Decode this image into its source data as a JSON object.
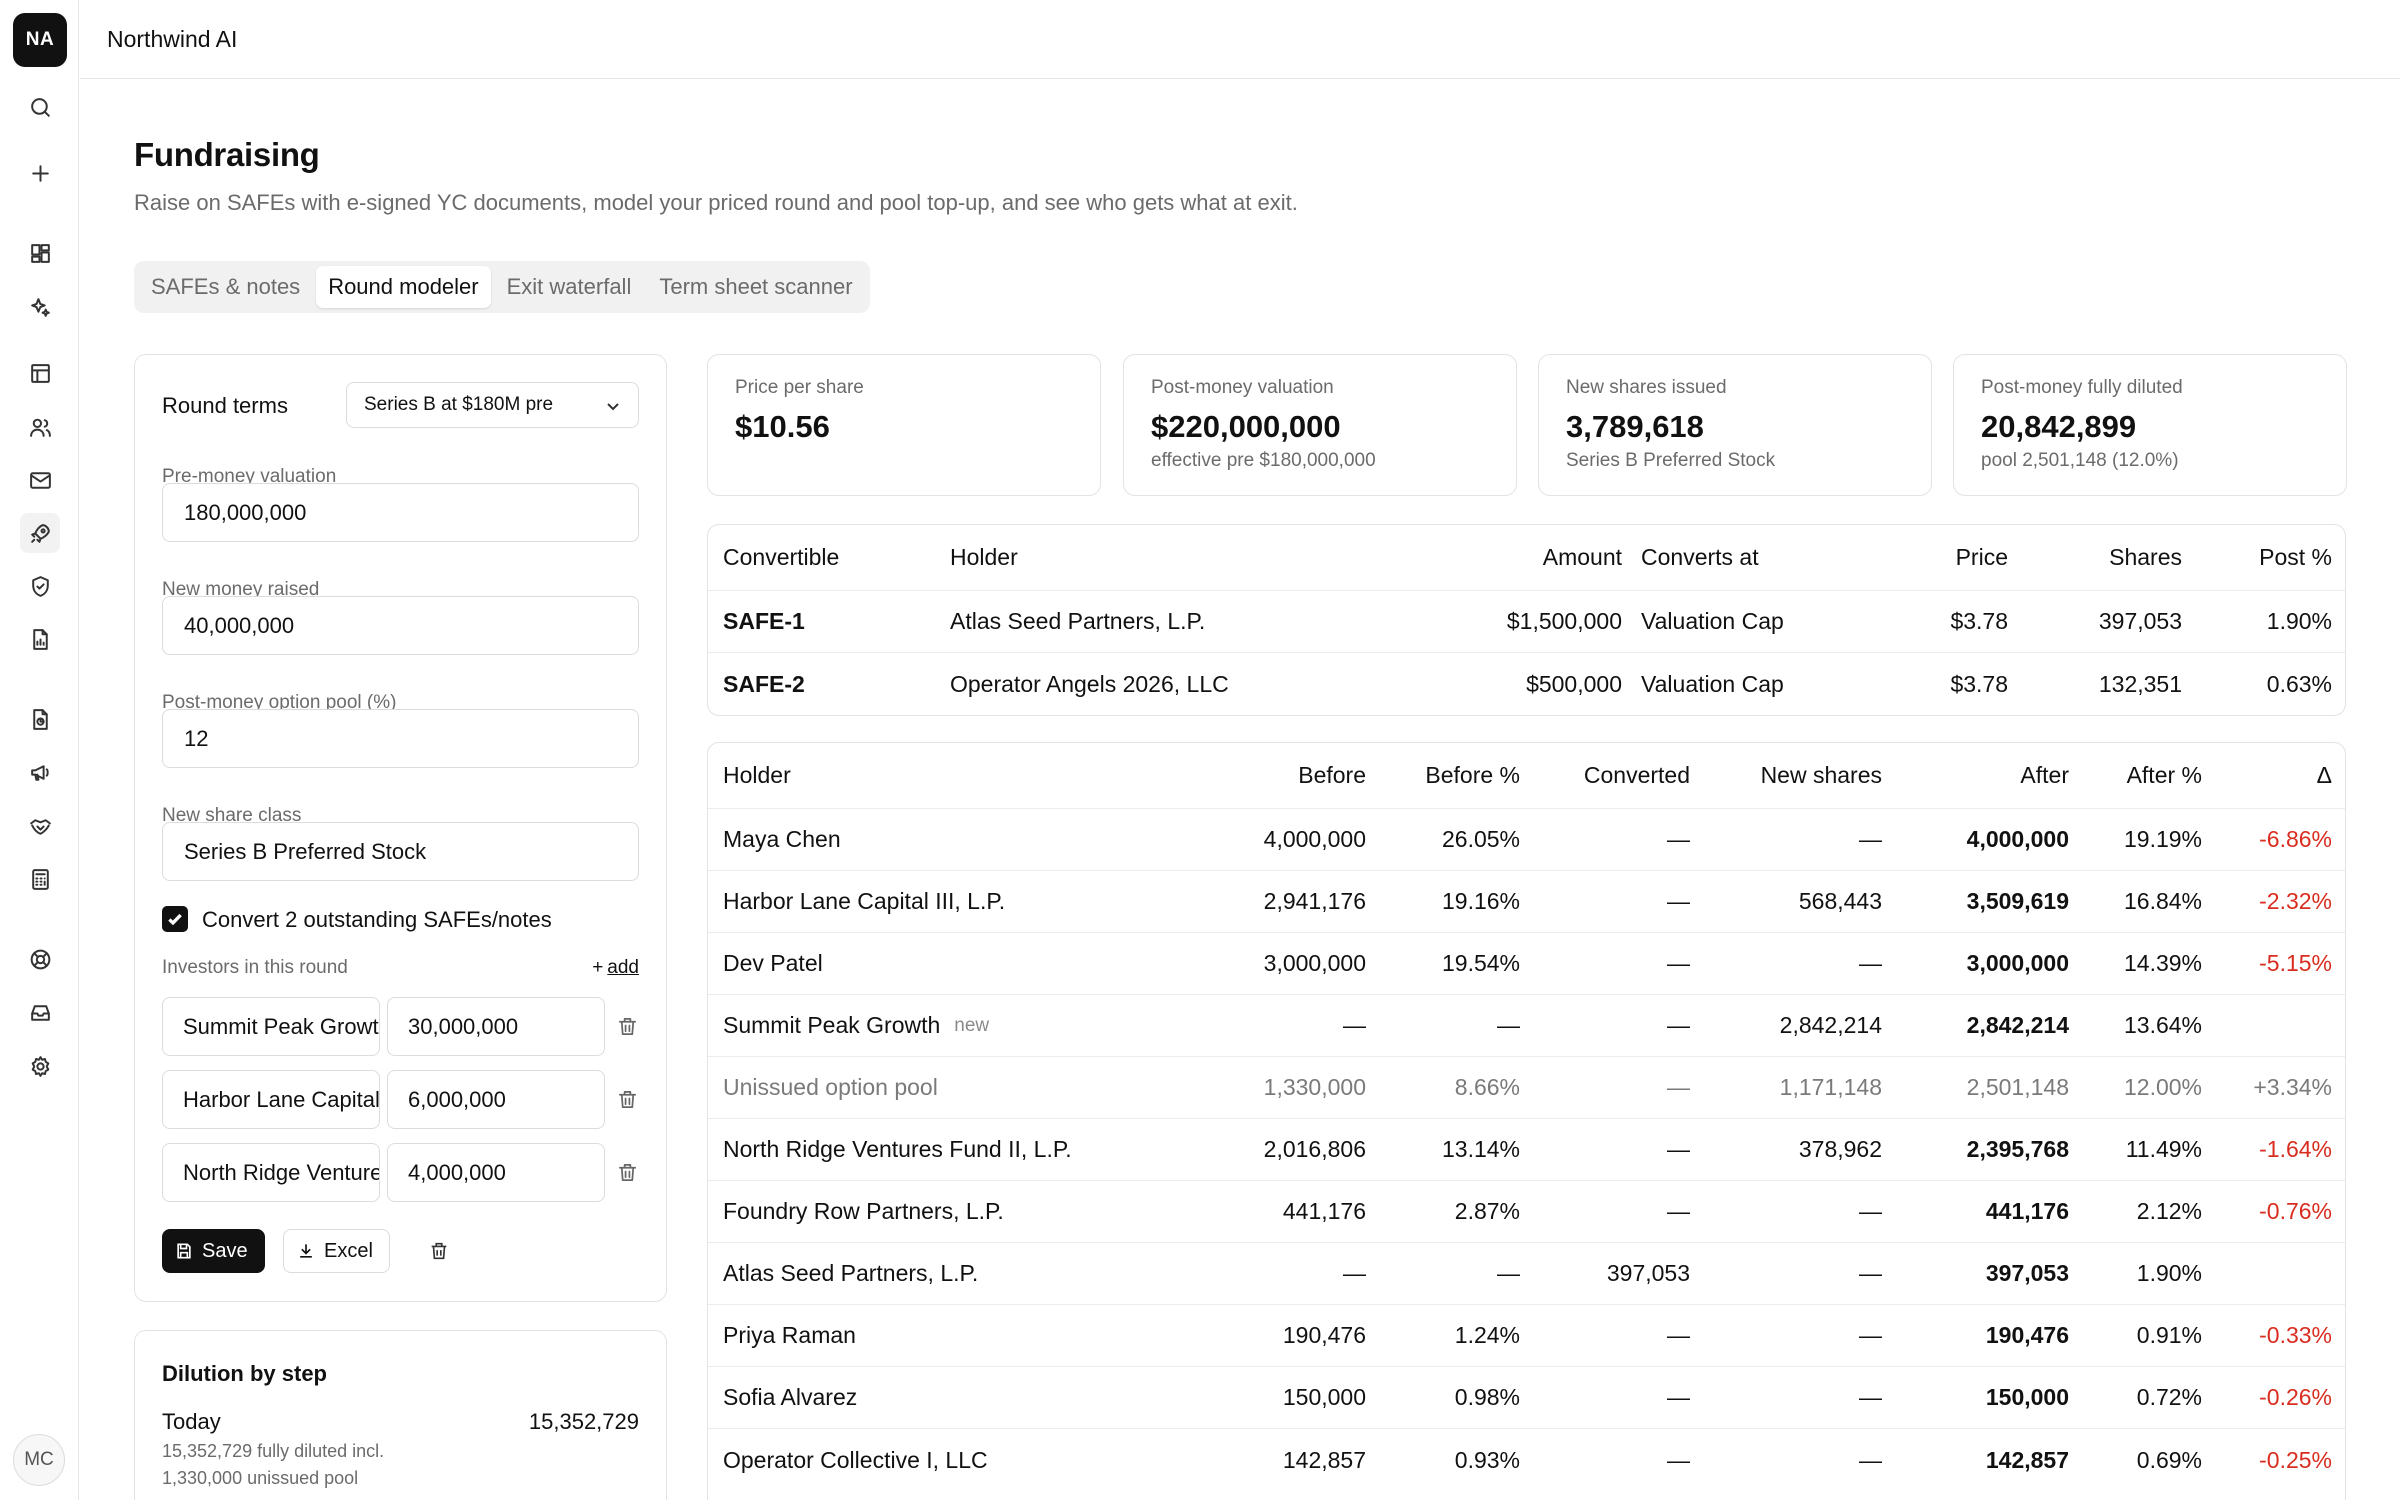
{
  "rail": {
    "logo": "NA",
    "avatar": "MC",
    "icons": [
      "search-icon",
      "plus-icon",
      "dashboard-icon",
      "sparkle-icon",
      "table-icon",
      "users-icon",
      "mail-icon",
      "rocket-icon",
      "shield-icon",
      "report-icon",
      "document-chart-icon",
      "megaphone-icon",
      "handshake-icon",
      "calculator-icon",
      "lifebuoy-icon",
      "inbox-icon",
      "gear-icon"
    ]
  },
  "app": {
    "title": "Northwind AI"
  },
  "page": {
    "title": "Fundraising",
    "subtitle": "Raise on SAFEs with e-signed YC documents, model your priced round and pool top-up, and see who gets what at exit."
  },
  "tabs": [
    {
      "label": "SAFEs & notes",
      "active": false
    },
    {
      "label": "Round modeler",
      "active": true
    },
    {
      "label": "Exit waterfall",
      "active": false
    },
    {
      "label": "Term sheet scanner",
      "active": false
    }
  ],
  "round_terms": {
    "label": "Round terms",
    "preset": "Series B at $180M pre",
    "fields": [
      {
        "label": "Pre-money valuation",
        "value": "180,000,000"
      },
      {
        "label": "New money raised",
        "value": "40,000,000"
      },
      {
        "label": "Post-money option pool (%)",
        "value": "12"
      },
      {
        "label": "New share class",
        "value": "Series B Preferred Stock"
      }
    ],
    "convert_label": "Convert 2 outstanding SAFEs/notes",
    "convert_checked": true,
    "investors_label": "Investors in this round",
    "add_label": "add",
    "investors": [
      {
        "name": "Summit Peak Growth",
        "amount": "30,000,000"
      },
      {
        "name": "Harbor Lane Capital III, L.P.",
        "amount": "6,000,000"
      },
      {
        "name": "North Ridge Ventures Fund II, L.P.",
        "amount": "4,000,000"
      }
    ],
    "save_label": "Save",
    "excel_label": "Excel"
  },
  "dilution": {
    "title": "Dilution by step",
    "step": "Today",
    "value": "15,352,729",
    "note1": "15,352,729 fully diluted incl.",
    "note2": "1,330,000 unissued pool"
  },
  "cards": [
    {
      "label": "Price per share",
      "value": "$10.56",
      "sub": ""
    },
    {
      "label": "Post-money valuation",
      "value": "$220,000,000",
      "sub": "effective pre $180,000,000"
    },
    {
      "label": "New shares issued",
      "value": "3,789,618",
      "sub": "Series B Preferred Stock"
    },
    {
      "label": "Post-money fully diluted",
      "value": "20,842,899",
      "sub": "pool 2,501,148 (12.0%)"
    }
  ],
  "convertibles": {
    "headers": [
      "Convertible",
      "Holder",
      "Amount",
      "Converts at",
      "Price",
      "Shares",
      "Post %"
    ],
    "rows": [
      [
        "SAFE-1",
        "Atlas Seed Partners, L.P.",
        "$1,500,000",
        "Valuation Cap",
        "$3.78",
        "397,053",
        "1.90%"
      ],
      [
        "SAFE-2",
        "Operator Angels 2026, LLC",
        "$500,000",
        "Valuation Cap",
        "$3.78",
        "132,351",
        "0.63%"
      ]
    ]
  },
  "captable": {
    "headers": [
      "Holder",
      "Before",
      "Before %",
      "Converted",
      "New shares",
      "After",
      "After %",
      "Δ"
    ],
    "rows": [
      {
        "holder": "Maya Chen",
        "tag": "",
        "before": "4,000,000",
        "before_pct": "26.05%",
        "converted": "—",
        "new_shares": "—",
        "after": "4,000,000",
        "after_pct": "19.19%",
        "delta": "-6.86%",
        "delta_sign": "neg",
        "muted": false
      },
      {
        "holder": "Harbor Lane Capital III, L.P.",
        "tag": "",
        "before": "2,941,176",
        "before_pct": "19.16%",
        "converted": "—",
        "new_shares": "568,443",
        "after": "3,509,619",
        "after_pct": "16.84%",
        "delta": "-2.32%",
        "delta_sign": "neg",
        "muted": false
      },
      {
        "holder": "Dev Patel",
        "tag": "",
        "before": "3,000,000",
        "before_pct": "19.54%",
        "converted": "—",
        "new_shares": "—",
        "after": "3,000,000",
        "after_pct": "14.39%",
        "delta": "-5.15%",
        "delta_sign": "neg",
        "muted": false
      },
      {
        "holder": "Summit Peak Growth",
        "tag": "new",
        "before": "—",
        "before_pct": "—",
        "converted": "—",
        "new_shares": "2,842,214",
        "after": "2,842,214",
        "after_pct": "13.64%",
        "delta": "",
        "delta_sign": "",
        "muted": false
      },
      {
        "holder": "Unissued option pool",
        "tag": "",
        "before": "1,330,000",
        "before_pct": "8.66%",
        "converted": "—",
        "new_shares": "1,171,148",
        "after": "2,501,148",
        "after_pct": "12.00%",
        "delta": "+3.34%",
        "delta_sign": "pos",
        "muted": true
      },
      {
        "holder": "North Ridge Ventures Fund II, L.P.",
        "tag": "",
        "before": "2,016,806",
        "before_pct": "13.14%",
        "converted": "—",
        "new_shares": "378,962",
        "after": "2,395,768",
        "after_pct": "11.49%",
        "delta": "-1.64%",
        "delta_sign": "neg",
        "muted": false
      },
      {
        "holder": "Foundry Row Partners, L.P.",
        "tag": "",
        "before": "441,176",
        "before_pct": "2.87%",
        "converted": "—",
        "new_shares": "—",
        "after": "441,176",
        "after_pct": "2.12%",
        "delta": "-0.76%",
        "delta_sign": "neg",
        "muted": false
      },
      {
        "holder": "Atlas Seed Partners, L.P.",
        "tag": "",
        "before": "—",
        "before_pct": "—",
        "converted": "397,053",
        "new_shares": "—",
        "after": "397,053",
        "after_pct": "1.90%",
        "delta": "",
        "delta_sign": "",
        "muted": false
      },
      {
        "holder": "Priya Raman",
        "tag": "",
        "before": "190,476",
        "before_pct": "1.24%",
        "converted": "—",
        "new_shares": "—",
        "after": "190,476",
        "after_pct": "0.91%",
        "delta": "-0.33%",
        "delta_sign": "neg",
        "muted": false
      },
      {
        "holder": "Sofia Alvarez",
        "tag": "",
        "before": "150,000",
        "before_pct": "0.98%",
        "converted": "—",
        "new_shares": "—",
        "after": "150,000",
        "after_pct": "0.72%",
        "delta": "-0.26%",
        "delta_sign": "neg",
        "muted": false
      },
      {
        "holder": "Operator Collective I, LLC",
        "tag": "",
        "before": "142,857",
        "before_pct": "0.93%",
        "converted": "—",
        "new_shares": "—",
        "after": "142,857",
        "after_pct": "0.69%",
        "delta": "-0.25%",
        "delta_sign": "neg",
        "muted": false
      }
    ]
  },
  "colors": {
    "negative": "#d92d20",
    "positive": "#14934a",
    "accent": "#111111"
  }
}
